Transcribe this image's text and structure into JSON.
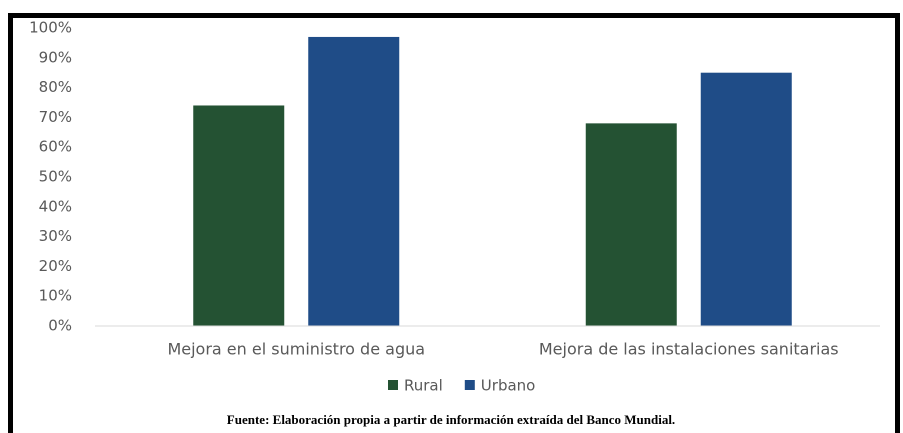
{
  "chart_data": {
    "type": "bar",
    "categories": [
      "Mejora en el suministro de agua",
      "Mejora de las instalaciones sanitarias"
    ],
    "series": [
      {
        "name": "Rural",
        "color": "#245233",
        "values": [
          74,
          68
        ]
      },
      {
        "name": "Urbano",
        "color": "#1f4c87",
        "values": [
          97,
          85
        ]
      }
    ],
    "ylim": [
      0,
      100
    ],
    "yticks": [
      {
        "value": 0,
        "label": "0%"
      },
      {
        "value": 10,
        "label": "10%"
      },
      {
        "value": 20,
        "label": "20%"
      },
      {
        "value": 30,
        "label": "30%"
      },
      {
        "value": 40,
        "label": "40%"
      },
      {
        "value": 50,
        "label": "50%"
      },
      {
        "value": 60,
        "label": "60%"
      },
      {
        "value": 70,
        "label": "70%"
      },
      {
        "value": 80,
        "label": "80%"
      },
      {
        "value": 90,
        "label": "90%"
      },
      {
        "value": 100,
        "label": "100%"
      }
    ],
    "grid": false,
    "legend": "bottom",
    "source": "Fuente: Elaboración propia a partir de información extraída del Banco Mundial."
  }
}
